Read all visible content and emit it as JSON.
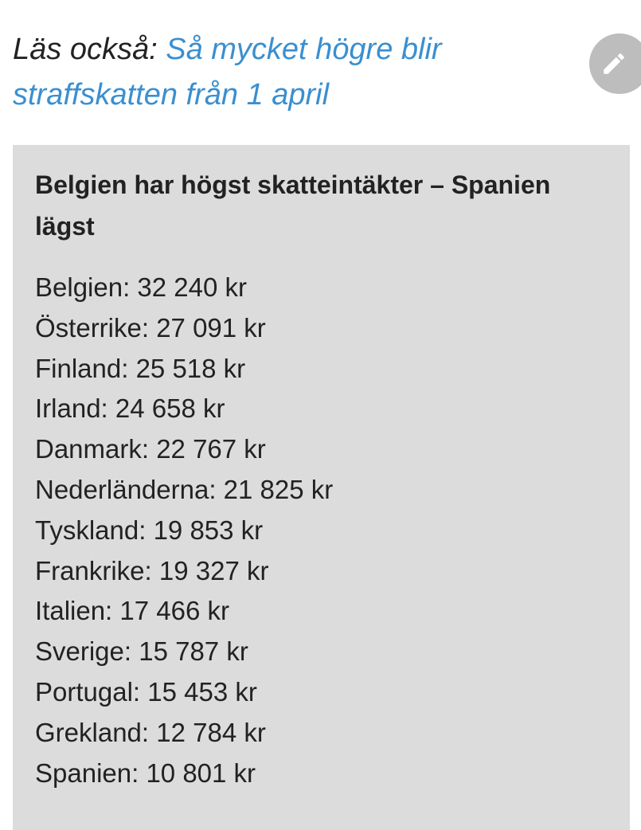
{
  "read_also": {
    "prefix": "Läs också: ",
    "link_text": "Så mycket högre blir straffskatten från 1 april"
  },
  "edit_button": {
    "icon": "pencil-icon",
    "color": "#bdbdbd"
  },
  "fact_box": {
    "title": "Belgien har högst skatteintäkter – Spanien lägst",
    "background": "#dcdcdc",
    "items": [
      "Belgien: 32 240 kr",
      "Österrike: 27 091 kr",
      "Finland: 25 518 kr",
      "Irland: 24 658 kr",
      "Danmark: 22 767 kr",
      "Nederländerna: 21 825 kr",
      "Tyskland: 19 853 kr",
      "Frankrike: 19 327 kr",
      "Italien: 17 466 kr",
      "Sverige: 15 787 kr",
      "Portugal: 15 453 kr",
      "Grekland: 12 784 kr",
      "Spanien: 10 801 kr"
    ]
  },
  "colors": {
    "link": "#3a8fd0",
    "text": "#222222"
  }
}
